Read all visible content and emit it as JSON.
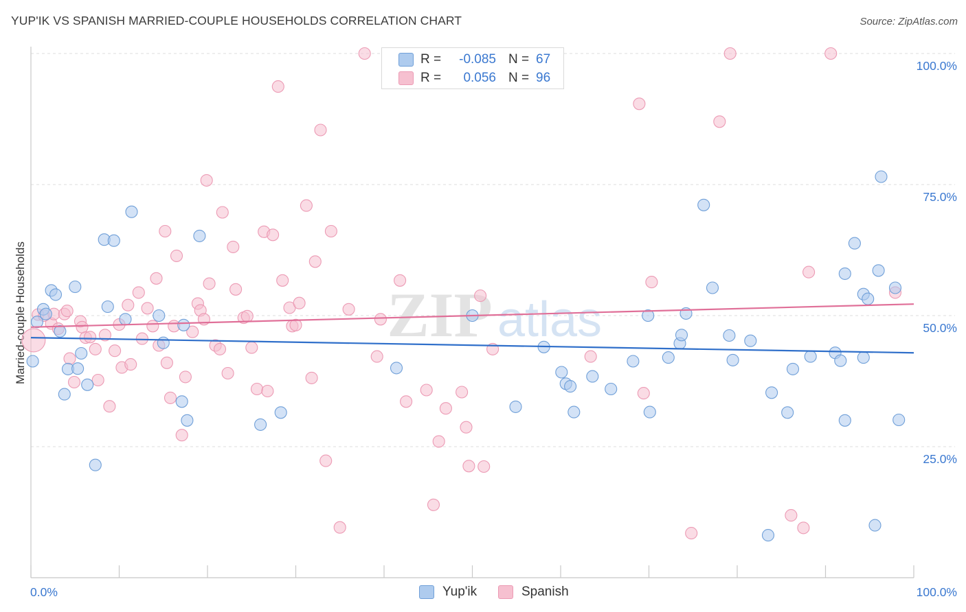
{
  "title": "YUP'IK VS SPANISH MARRIED-COUPLE HOUSEHOLDS CORRELATION CHART",
  "source": "Source: ZipAtlas.com",
  "watermark": {
    "zip": "ZIP",
    "atlas": "atlas"
  },
  "legend": {
    "r_label": "R =",
    "n_label": "N =",
    "series": [
      {
        "name": "Yup'ik",
        "r": "-0.085",
        "n": "67"
      },
      {
        "name": "Spanish",
        "r": "0.056",
        "n": "96"
      }
    ]
  },
  "chart_data": {
    "type": "scatter",
    "title": "YUP'IK VS SPANISH MARRIED-COUPLE HOUSEHOLDS CORRELATION CHART",
    "xlabel": "",
    "ylabel": "Married-couple Households",
    "xlim": [
      0,
      100
    ],
    "ylim": [
      0,
      100
    ],
    "x_tick_labels": [
      "0.0%",
      "100.0%"
    ],
    "y_ticks": [
      {
        "value": 25,
        "label": "25.0%"
      },
      {
        "value": 50,
        "label": "50.0%"
      },
      {
        "value": 75,
        "label": "75.0%"
      },
      {
        "value": 100,
        "label": "100.0%"
      }
    ],
    "colors": {
      "yupik_fill": "#aecbee",
      "yupik_stroke": "#6f9fd8",
      "yupik_line": "#2f6fca",
      "spanish_fill": "#f6c0d0",
      "spanish_stroke": "#ec9ab4",
      "spanish_line": "#e06f98",
      "axis_text": "#3a78d0",
      "grid": "#dddddd"
    },
    "series": [
      {
        "name": "Yup'ik",
        "trend": {
          "x0": 0,
          "y0": 45.8,
          "x1": 100,
          "y1": 42.9
        },
        "points": [
          [
            0.2,
            41.3
          ],
          [
            0.7,
            48.8
          ],
          [
            1.4,
            51.2
          ],
          [
            1.7,
            50.3
          ],
          [
            2.3,
            54.8
          ],
          [
            2.8,
            54.0
          ],
          [
            3.3,
            47.0
          ],
          [
            3.8,
            35.0
          ],
          [
            4.2,
            39.8
          ],
          [
            5.0,
            55.5
          ],
          [
            5.3,
            39.9
          ],
          [
            5.7,
            42.8
          ],
          [
            6.4,
            36.8
          ],
          [
            7.3,
            21.5
          ],
          [
            8.3,
            64.5
          ],
          [
            8.7,
            51.7
          ],
          [
            9.4,
            64.3
          ],
          [
            10.7,
            49.3
          ],
          [
            11.4,
            69.8
          ],
          [
            14.5,
            50.0
          ],
          [
            15.0,
            44.8
          ],
          [
            17.3,
            48.2
          ],
          [
            17.1,
            33.6
          ],
          [
            17.7,
            30.0
          ],
          [
            19.1,
            65.2
          ],
          [
            26.0,
            29.2
          ],
          [
            28.3,
            31.5
          ],
          [
            41.4,
            40.0
          ],
          [
            50.0,
            50.0
          ],
          [
            54.9,
            32.6
          ],
          [
            58.1,
            44.0
          ],
          [
            60.1,
            39.2
          ],
          [
            60.6,
            37.0
          ],
          [
            61.1,
            36.5
          ],
          [
            61.5,
            31.6
          ],
          [
            63.6,
            38.4
          ],
          [
            65.7,
            36.0
          ],
          [
            68.2,
            41.3
          ],
          [
            69.9,
            50.0
          ],
          [
            70.1,
            31.6
          ],
          [
            72.2,
            42.0
          ],
          [
            73.5,
            44.7
          ],
          [
            73.7,
            46.3
          ],
          [
            74.2,
            50.4
          ],
          [
            76.2,
            71.1
          ],
          [
            77.2,
            55.3
          ],
          [
            79.1,
            46.2
          ],
          [
            79.5,
            41.5
          ],
          [
            81.5,
            45.2
          ],
          [
            83.5,
            8.1
          ],
          [
            83.9,
            35.3
          ],
          [
            85.7,
            31.5
          ],
          [
            86.3,
            39.8
          ],
          [
            88.3,
            42.2
          ],
          [
            91.1,
            42.9
          ],
          [
            91.7,
            41.4
          ],
          [
            92.2,
            30.0
          ],
          [
            92.2,
            58.0
          ],
          [
            93.3,
            63.8
          ],
          [
            94.3,
            54.1
          ],
          [
            94.3,
            42.0
          ],
          [
            94.8,
            53.2
          ],
          [
            95.6,
            10.0
          ],
          [
            96.0,
            58.6
          ],
          [
            96.3,
            76.5
          ],
          [
            97.9,
            55.3
          ],
          [
            98.3,
            30.1
          ]
        ]
      },
      {
        "name": "Spanish",
        "trend": {
          "x0": 0,
          "y0": 47.8,
          "x1": 100,
          "y1": 52.2
        },
        "points": [
          [
            0.3,
            45.3
          ],
          [
            0.8,
            50.2
          ],
          [
            1.5,
            50.0
          ],
          [
            2.3,
            48.5
          ],
          [
            2.6,
            50.3
          ],
          [
            3.1,
            47.5
          ],
          [
            3.8,
            50.3
          ],
          [
            4.1,
            50.9
          ],
          [
            4.4,
            41.8
          ],
          [
            4.9,
            37.3
          ],
          [
            5.6,
            48.9
          ],
          [
            5.8,
            47.8
          ],
          [
            6.2,
            45.8
          ],
          [
            6.7,
            45.9
          ],
          [
            7.3,
            43.6
          ],
          [
            7.6,
            37.7
          ],
          [
            8.4,
            46.3
          ],
          [
            8.9,
            32.7
          ],
          [
            9.5,
            43.3
          ],
          [
            10.0,
            48.3
          ],
          [
            10.3,
            40.1
          ],
          [
            11.0,
            52.0
          ],
          [
            11.3,
            40.7
          ],
          [
            12.2,
            54.4
          ],
          [
            12.6,
            45.6
          ],
          [
            13.2,
            51.4
          ],
          [
            13.8,
            48.0
          ],
          [
            14.2,
            57.1
          ],
          [
            14.5,
            44.3
          ],
          [
            15.2,
            66.1
          ],
          [
            15.4,
            41.0
          ],
          [
            15.8,
            34.3
          ],
          [
            16.2,
            48.0
          ],
          [
            16.5,
            61.4
          ],
          [
            17.1,
            27.2
          ],
          [
            17.5,
            38.3
          ],
          [
            18.3,
            46.9
          ],
          [
            18.9,
            52.3
          ],
          [
            19.2,
            51.0
          ],
          [
            19.6,
            49.3
          ],
          [
            19.9,
            75.8
          ],
          [
            20.2,
            56.1
          ],
          [
            20.9,
            44.3
          ],
          [
            21.4,
            43.6
          ],
          [
            21.7,
            69.7
          ],
          [
            22.3,
            39.0
          ],
          [
            22.9,
            63.1
          ],
          [
            23.2,
            55.0
          ],
          [
            24.1,
            49.6
          ],
          [
            24.5,
            49.9
          ],
          [
            25.0,
            43.9
          ],
          [
            25.6,
            36.0
          ],
          [
            26.4,
            66.0
          ],
          [
            26.8,
            35.6
          ],
          [
            27.4,
            65.4
          ],
          [
            28.0,
            93.7
          ],
          [
            28.5,
            56.7
          ],
          [
            29.3,
            51.5
          ],
          [
            29.6,
            48.0
          ],
          [
            30.0,
            48.2
          ],
          [
            30.4,
            52.4
          ],
          [
            31.2,
            71.0
          ],
          [
            31.8,
            38.1
          ],
          [
            32.2,
            60.3
          ],
          [
            32.8,
            85.4
          ],
          [
            33.4,
            22.3
          ],
          [
            34.0,
            66.1
          ],
          [
            35.0,
            9.6
          ],
          [
            36.0,
            51.2
          ],
          [
            37.8,
            100.0
          ],
          [
            39.2,
            42.2
          ],
          [
            39.6,
            49.3
          ],
          [
            41.8,
            56.7
          ],
          [
            42.5,
            33.6
          ],
          [
            44.8,
            35.8
          ],
          [
            45.6,
            13.9
          ],
          [
            46.2,
            26.0
          ],
          [
            47.0,
            32.3
          ],
          [
            48.8,
            35.4
          ],
          [
            49.3,
            28.7
          ],
          [
            49.6,
            21.3
          ],
          [
            50.9,
            53.8
          ],
          [
            51.3,
            21.2
          ],
          [
            52.3,
            43.6
          ],
          [
            63.4,
            42.2
          ],
          [
            68.9,
            90.4
          ],
          [
            69.4,
            35.2
          ],
          [
            70.3,
            56.4
          ],
          [
            74.8,
            8.5
          ],
          [
            78.0,
            87.0
          ],
          [
            79.2,
            100.0
          ],
          [
            86.1,
            11.9
          ],
          [
            87.5,
            9.5
          ],
          [
            88.1,
            58.3
          ],
          [
            90.6,
            100.0
          ],
          [
            97.9,
            54.4
          ]
        ]
      }
    ]
  }
}
